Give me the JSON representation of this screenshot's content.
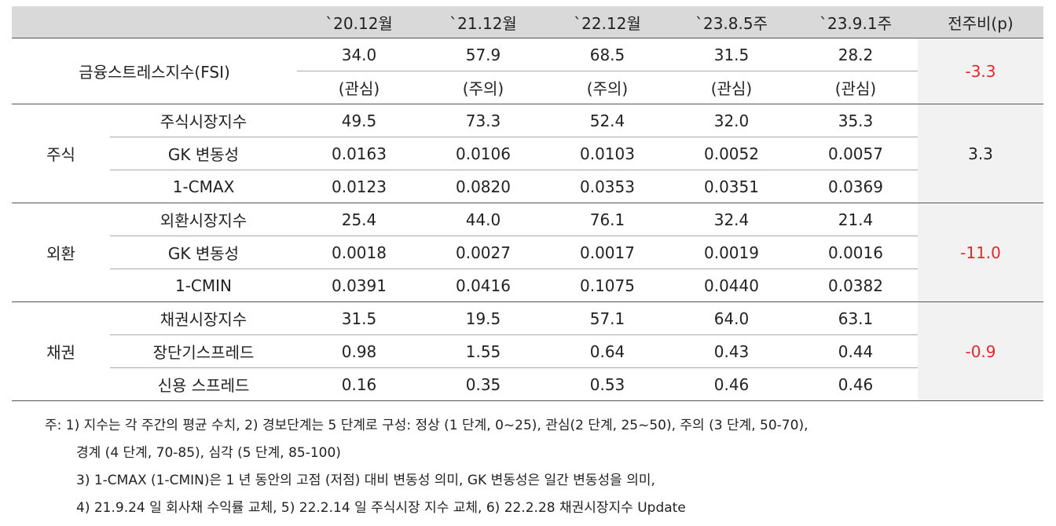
{
  "table": {
    "header": [
      "`20.12월",
      "`21.12월",
      "`22.12월",
      "`23.8.5주",
      "`23.9.1주",
      "전주비(p)"
    ],
    "groups": [
      {
        "label": "금융스트레스지수(FSI)",
        "change": "-3.3",
        "change_color": "#e8262b",
        "rows": [
          {
            "values": [
              "34.0",
              "57.9",
              "68.5",
              "31.5",
              "28.2"
            ]
          },
          {
            "values": [
              "(관심)",
              "(주의)",
              "(주의)",
              "(관심)",
              "(관심)"
            ]
          }
        ]
      },
      {
        "label": "주식",
        "change": "3.3",
        "change_color": "#222222",
        "rows": [
          {
            "label": "주식시장지수",
            "values": [
              "49.5",
              "73.3",
              "52.4",
              "32.0",
              "35.3"
            ]
          },
          {
            "label": "GK 변동성",
            "values": [
              "0.0163",
              "0.0106",
              "0.0103",
              "0.0052",
              "0.0057"
            ]
          },
          {
            "label": "1-CMAX",
            "values": [
              "0.0123",
              "0.0820",
              "0.0353",
              "0.0351",
              "0.0369"
            ]
          }
        ]
      },
      {
        "label": "외환",
        "change": "-11.0",
        "change_color": "#e8262b",
        "rows": [
          {
            "label": "외환시장지수",
            "values": [
              "25.4",
              "44.0",
              "76.1",
              "32.4",
              "21.4"
            ]
          },
          {
            "label": "GK 변동성",
            "values": [
              "0.0018",
              "0.0027",
              "0.0017",
              "0.0019",
              "0.0016"
            ]
          },
          {
            "label": "1-CMIN",
            "values": [
              "0.0391",
              "0.0416",
              "0.1075",
              "0.0440",
              "0.0382"
            ]
          }
        ]
      },
      {
        "label": "채권",
        "change": "-0.9",
        "change_color": "#e8262b",
        "rows": [
          {
            "label": "채권시장지수",
            "values": [
              "31.5",
              "19.5",
              "57.1",
              "64.0",
              "63.1"
            ]
          },
          {
            "label": "장단기스프레드",
            "values": [
              "0.98",
              "1.55",
              "0.64",
              "0.43",
              "0.44"
            ]
          },
          {
            "label": "신용 스프레드",
            "values": [
              "0.16",
              "0.35",
              "0.53",
              "0.46",
              "0.46"
            ]
          }
        ]
      }
    ]
  },
  "notes": [
    "주: 1) 지수는 각 주간의 평균 수치, 2) 경보단계는 5 단계로 구성: 정상 (1 단계, 0~25), 관심(2 단계, 25~50), 주의 (3 단계, 50-70),",
    "경계 (4 단계, 70-85), 심각 (5 단계, 85-100)",
    "3) 1-CMAX (1-CMIN)은 1 년 동안의 고점 (저점) 대비 변동성 의미, GK 변동성은 일간 변동성을 의미,",
    "4) 21.9.24 일 회사채 수익률 교체, 5) 22.2.14 일 주식시장 지수 교체, 6) 22.2.28 채권시장지수 Update"
  ]
}
